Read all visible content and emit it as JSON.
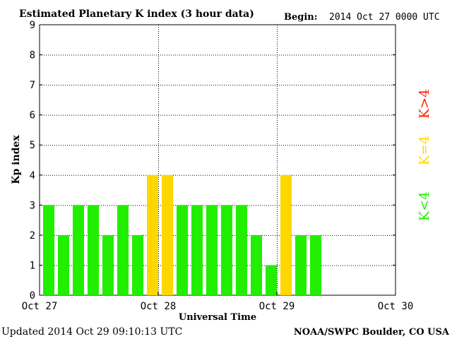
{
  "header": {
    "title": "Estimated Planetary K index (3 hour data)",
    "begin_label": "Begin:",
    "begin_value": "2014 Oct 27 0000 UTC"
  },
  "footer": {
    "updated": "Updated 2014 Oct 29 09:10:13 UTC",
    "source": "NOAA/SWPC Boulder, CO USA"
  },
  "colors": {
    "below": "#22ee00",
    "equal": "#ffd700",
    "above": "#ff2200"
  },
  "legend": {
    "below": "K<4",
    "equal": "K=4",
    "above": "K>4",
    "placement": "right"
  },
  "chart_data": {
    "type": "bar",
    "title": "Estimated Planetary K index (3 hour data)",
    "xlabel": "Universal Time",
    "ylabel": "Kp index",
    "ylim": [
      0,
      9
    ],
    "yticks": [
      "0",
      "1",
      "2",
      "3",
      "4",
      "5",
      "6",
      "7",
      "8",
      "9"
    ],
    "xlim_slots": [
      0,
      24
    ],
    "xticks": [
      {
        "label": "Oct 27",
        "slot": 0
      },
      {
        "label": "Oct 28",
        "slot": 8
      },
      {
        "label": "Oct 29",
        "slot": 16
      },
      {
        "label": "Oct 30",
        "slot": 24
      }
    ],
    "grid": true,
    "values": [
      3,
      2,
      3,
      3,
      2,
      3,
      2,
      4,
      4,
      3,
      3,
      3,
      3,
      3,
      2,
      1,
      4,
      2,
      2
    ]
  }
}
